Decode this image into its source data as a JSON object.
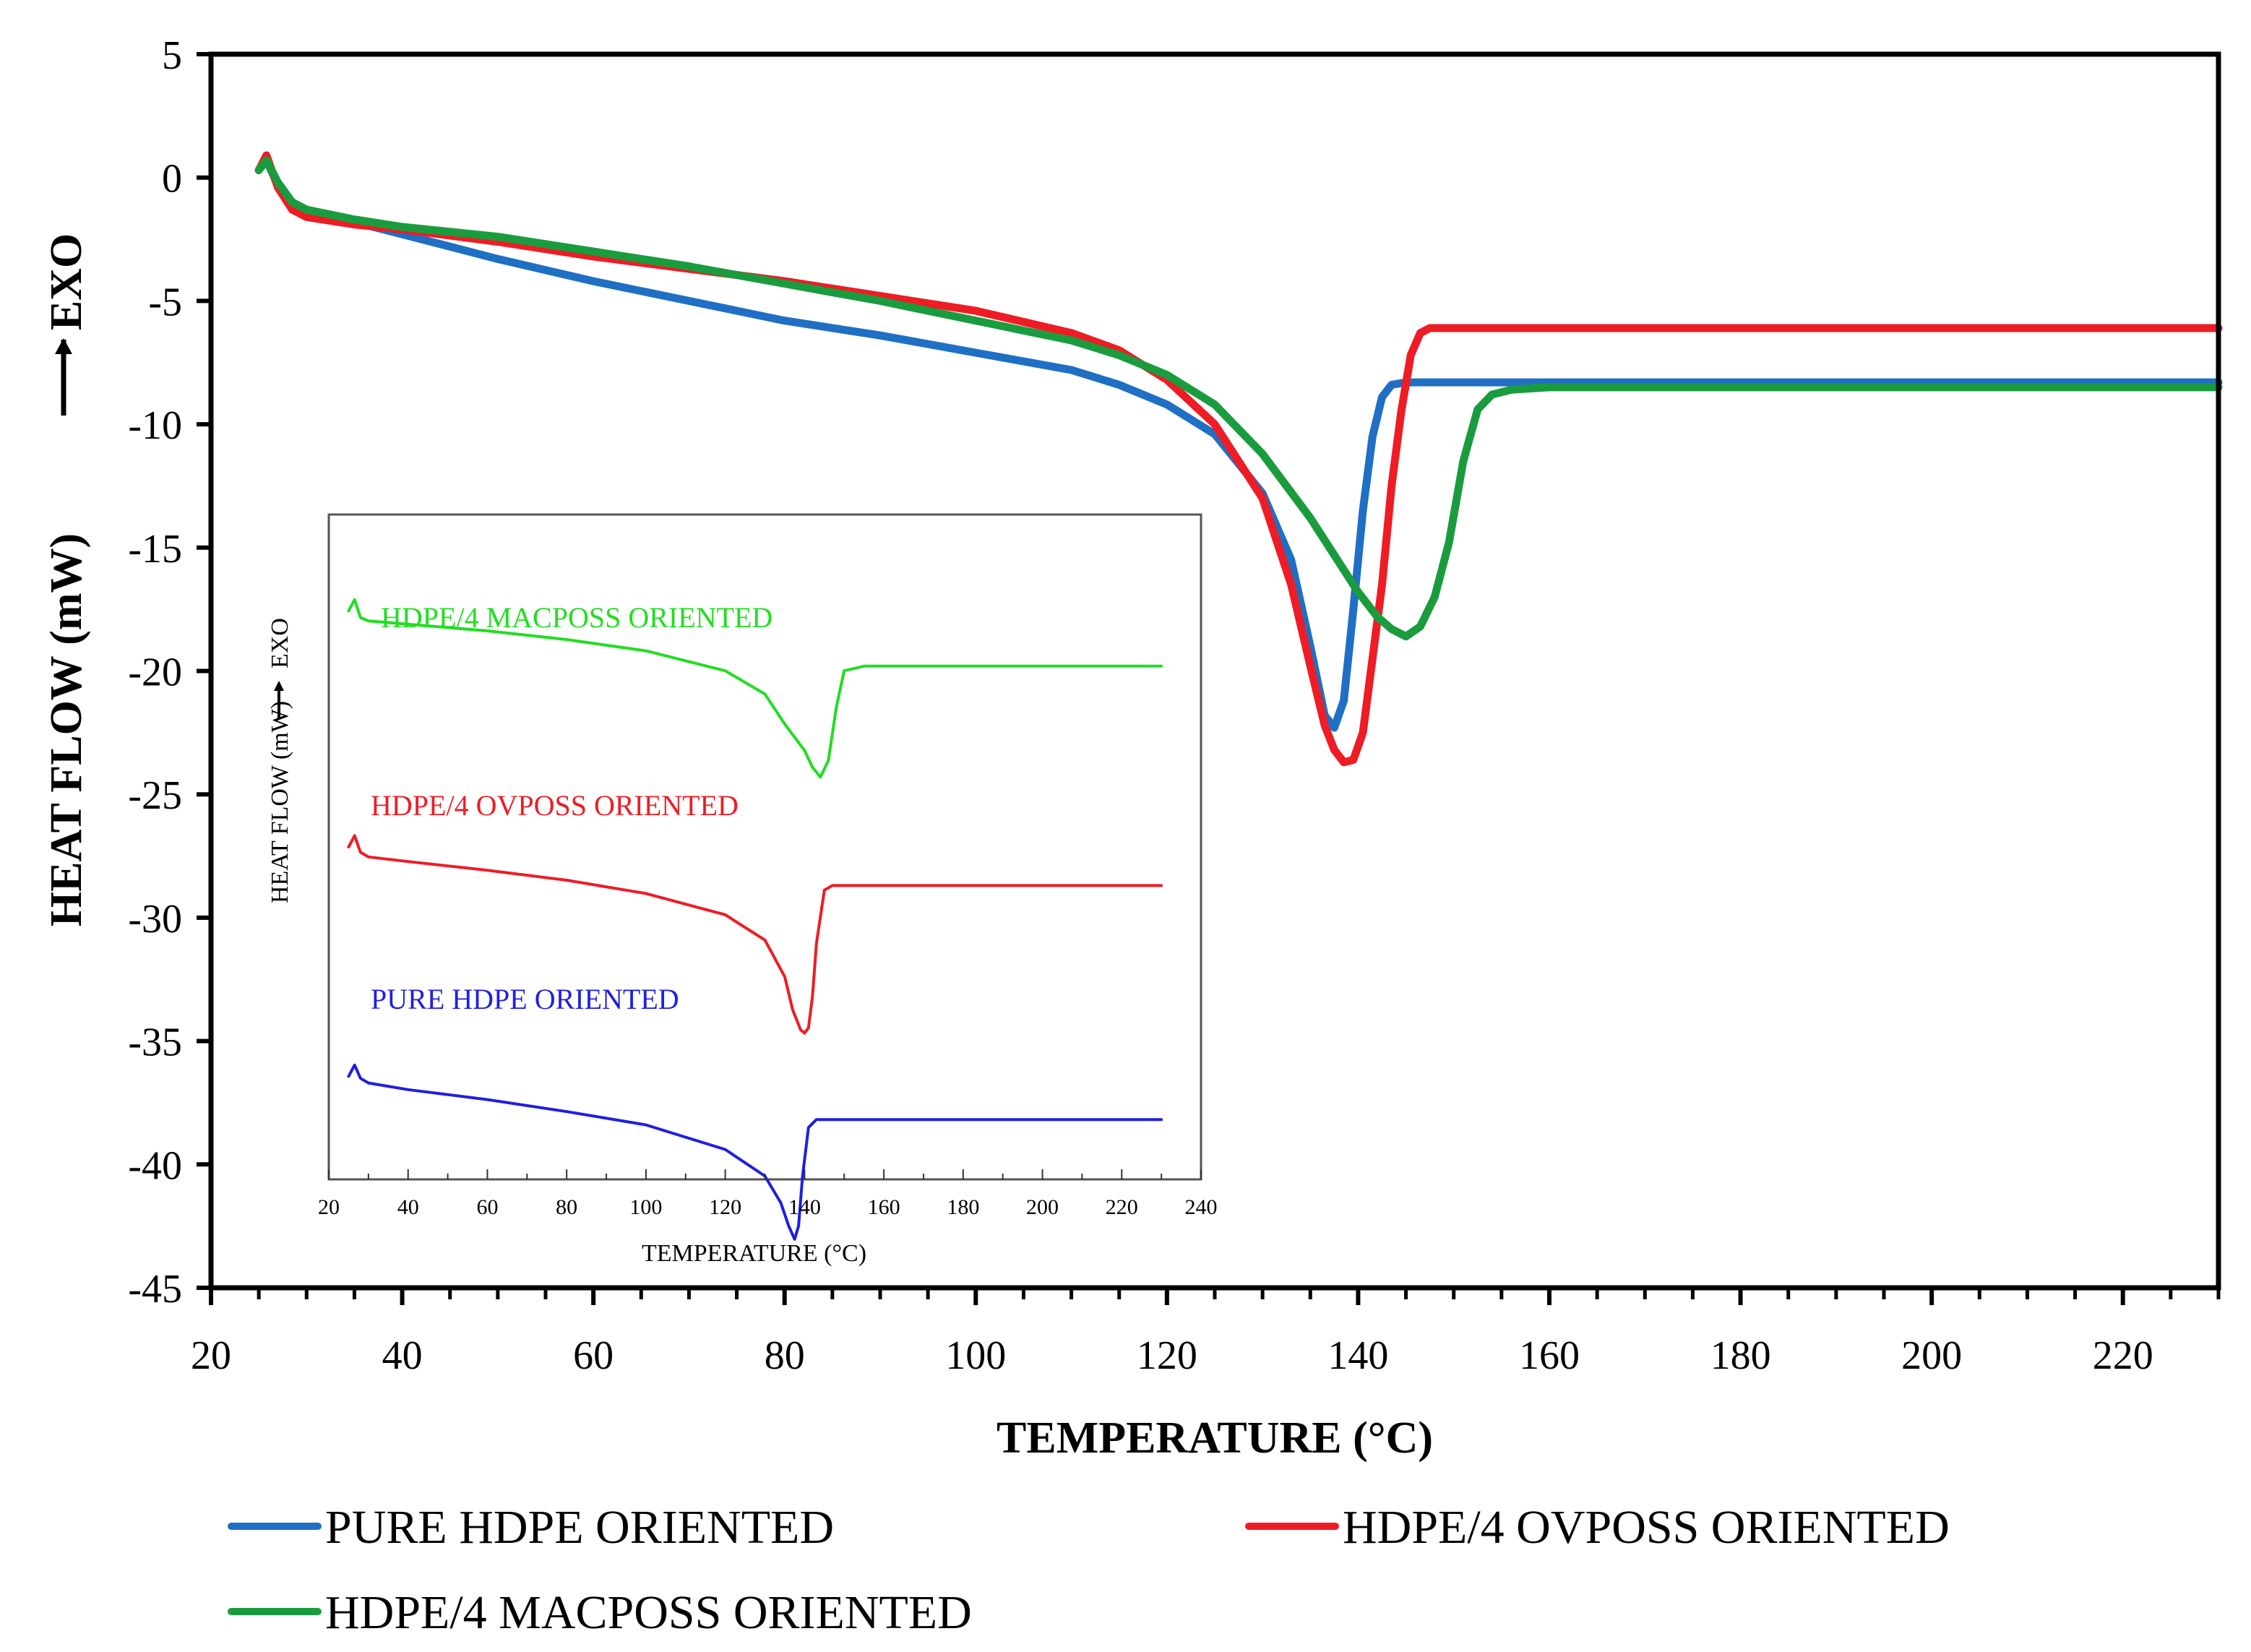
{
  "chart_data": [
    {
      "type": "line",
      "title": "",
      "xlabel": "TEMPERATURE (°C)",
      "ylabel": "HEAT FLOW (mW)",
      "ylabel_suffix": "EXO",
      "xlim": [
        20,
        230
      ],
      "ylim": [
        -45,
        5
      ],
      "xticks": [
        20,
        40,
        60,
        80,
        100,
        120,
        140,
        160,
        180,
        200,
        220
      ],
      "yticks": [
        5,
        0,
        -5,
        -10,
        -15,
        -20,
        -25,
        -30,
        -35,
        -40,
        -45
      ],
      "legend_position": "bottom",
      "series": [
        {
          "name": "PURE HDPE ORIENTED",
          "color": "#1f6fc4",
          "x": [
            25,
            25.8,
            27,
            28.5,
            30,
            35,
            40,
            50,
            60,
            70,
            80,
            90,
            100,
            110,
            115,
            120,
            125,
            130,
            133,
            135,
            136.5,
            137.5,
            138.5,
            139.5,
            140.5,
            141.5,
            142.5,
            143.5,
            145,
            150,
            160,
            180,
            200,
            230
          ],
          "y": [
            0.3,
            0.7,
            -0.3,
            -1.1,
            -1.4,
            -1.8,
            -2.3,
            -3.3,
            -4.2,
            -5.0,
            -5.8,
            -6.4,
            -7.1,
            -7.8,
            -8.4,
            -9.2,
            -10.4,
            -12.8,
            -15.5,
            -19.0,
            -21.8,
            -22.3,
            -21.2,
            -17.5,
            -13.5,
            -10.5,
            -8.9,
            -8.4,
            -8.3,
            -8.3,
            -8.3,
            -8.3,
            -8.3,
            -8.3
          ]
        },
        {
          "name": "HDPE/4 OVPOSS ORIENTED",
          "color": "#ee1c25",
          "x": [
            25,
            25.8,
            27,
            28.5,
            30,
            35,
            40,
            50,
            60,
            70,
            80,
            90,
            100,
            110,
            115,
            120,
            125,
            130,
            133,
            135,
            136.5,
            137.5,
            138.5,
            139.5,
            140.5,
            141.5,
            142.5,
            143.5,
            144.5,
            145.5,
            146.5,
            147.5,
            150,
            160,
            180,
            200,
            230
          ],
          "y": [
            0.3,
            0.9,
            -0.4,
            -1.3,
            -1.6,
            -1.9,
            -2.1,
            -2.6,
            -3.2,
            -3.7,
            -4.2,
            -4.8,
            -5.4,
            -6.3,
            -7.0,
            -8.2,
            -10.0,
            -13.0,
            -16.5,
            -19.8,
            -22.2,
            -23.2,
            -23.7,
            -23.6,
            -22.5,
            -19.5,
            -16.5,
            -12.5,
            -9.5,
            -7.2,
            -6.3,
            -6.1,
            -6.1,
            -6.1,
            -6.1,
            -6.1,
            -6.1
          ]
        },
        {
          "name": "HDPE/4 MACPOSS ORIENTED",
          "color": "#1a9c3e",
          "x": [
            25,
            25.8,
            27,
            28.5,
            30,
            35,
            40,
            50,
            60,
            70,
            80,
            90,
            100,
            110,
            115,
            120,
            125,
            130,
            135,
            138,
            140,
            142,
            143.5,
            145,
            146.5,
            148,
            149.5,
            151,
            152.5,
            154,
            156,
            160,
            180,
            200,
            230
          ],
          "y": [
            0.3,
            0.7,
            -0.2,
            -1.0,
            -1.3,
            -1.7,
            -2.0,
            -2.4,
            -3.0,
            -3.6,
            -4.3,
            -5.0,
            -5.8,
            -6.6,
            -7.2,
            -8.0,
            -9.2,
            -11.2,
            -13.8,
            -15.6,
            -16.8,
            -17.8,
            -18.3,
            -18.6,
            -18.2,
            -17.0,
            -14.8,
            -11.5,
            -9.4,
            -8.8,
            -8.6,
            -8.5,
            -8.5,
            -8.5,
            -8.5
          ]
        }
      ]
    },
    {
      "type": "line",
      "role": "inset",
      "xlabel": "TEMPERATURE (°C)",
      "ylabel": "HEAT FLOW (mW)",
      "ylabel_suffix": "EXO",
      "xlim": [
        20,
        240
      ],
      "xticks": [
        20,
        40,
        60,
        80,
        100,
        120,
        140,
        160,
        180,
        200,
        220,
        240
      ],
      "y_units": "relative (stacked curves, offset units 0-10)",
      "series": [
        {
          "name": "HDPE/4 MACPOSS ORIENTED",
          "color": "#22dd22",
          "x": [
            25,
            26.5,
            28,
            30,
            40,
            60,
            80,
            100,
            120,
            130,
            135,
            140,
            142,
            144,
            146,
            148,
            150,
            155,
            230
          ],
          "y": [
            8.55,
            8.72,
            8.45,
            8.4,
            8.35,
            8.25,
            8.12,
            7.95,
            7.65,
            7.3,
            6.85,
            6.45,
            6.2,
            6.05,
            6.3,
            7.1,
            7.65,
            7.72,
            7.72
          ]
        },
        {
          "name": "HDPE/4 OVPOSS ORIENTED",
          "color": "#ee1c25",
          "x": [
            25,
            26.5,
            28,
            30,
            40,
            60,
            80,
            100,
            120,
            130,
            135,
            137,
            139,
            140,
            141,
            142,
            143,
            145,
            147,
            230
          ],
          "y": [
            5.0,
            5.17,
            4.92,
            4.85,
            4.78,
            4.65,
            4.5,
            4.3,
            3.98,
            3.6,
            3.05,
            2.55,
            2.25,
            2.2,
            2.28,
            2.75,
            3.55,
            4.35,
            4.42,
            4.42
          ]
        },
        {
          "name": "PURE HDPE ORIENTED",
          "color": "#1f1fe0",
          "x": [
            25,
            26.5,
            28,
            30,
            40,
            60,
            80,
            100,
            120,
            130,
            134,
            136,
            137.5,
            138.5,
            139.5,
            141,
            143,
            230
          ],
          "y": [
            1.55,
            1.72,
            1.52,
            1.45,
            1.35,
            1.2,
            1.02,
            0.82,
            0.45,
            0.05,
            -0.35,
            -0.7,
            -0.9,
            -0.7,
            0.05,
            0.78,
            0.9,
            0.9
          ]
        }
      ]
    }
  ]
}
